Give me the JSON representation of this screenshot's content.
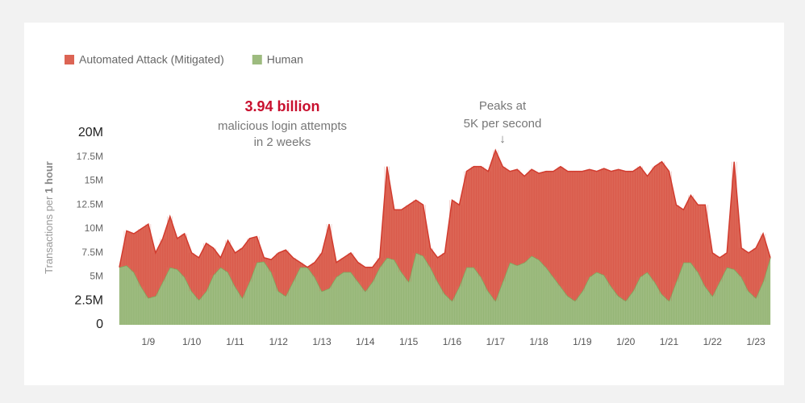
{
  "chart_data": {
    "type": "stacked_area",
    "annotations": {
      "total_value": "3.94 billion",
      "total_line1": "malicious login attempts",
      "total_line2": "in 2 weeks",
      "peak_line1": "Peaks at",
      "peak_line2": "5K per second",
      "peak_arrow": "↓"
    },
    "y_label": "Transactions per",
    "y_label_emphasis": "1 hour",
    "categories": [
      null,
      null,
      null,
      null,
      "1/9",
      null,
      null,
      null,
      null,
      null,
      "1/10",
      null,
      null,
      null,
      null,
      null,
      "1/11",
      null,
      null,
      null,
      null,
      null,
      "1/12",
      null,
      null,
      null,
      null,
      null,
      "1/13",
      null,
      null,
      null,
      null,
      null,
      "1/14",
      null,
      null,
      null,
      null,
      null,
      "1/15",
      null,
      null,
      null,
      null,
      null,
      "1/16",
      null,
      null,
      null,
      null,
      null,
      "1/17",
      null,
      null,
      null,
      null,
      null,
      "1/18",
      null,
      null,
      null,
      null,
      null,
      "1/19",
      null,
      null,
      null,
      null,
      null,
      "1/20",
      null,
      null,
      null,
      null,
      null,
      "1/21",
      null,
      null,
      null,
      null,
      null,
      "1/22",
      null,
      null,
      null,
      null,
      null,
      "1/23",
      null,
      null
    ],
    "series": [
      {
        "name": "Human",
        "color": "#9dbb7f",
        "stroke": "#7fa65c",
        "values": [
          6000000,
          6200000,
          5500000,
          4000000,
          2800000,
          3000000,
          4500000,
          6000000,
          5800000,
          5000000,
          3500000,
          2600000,
          3500000,
          5200000,
          6000000,
          5500000,
          4000000,
          2800000,
          4500000,
          6500000,
          6600000,
          5500000,
          3500000,
          3000000,
          4500000,
          6000000,
          6000000,
          5000000,
          3500000,
          3800000,
          5000000,
          5500000,
          5500000,
          4500000,
          3500000,
          4500000,
          6000000,
          7000000,
          6800000,
          5500000,
          4500000,
          7500000,
          7200000,
          6000000,
          4500000,
          3200000,
          2500000,
          4000000,
          6000000,
          6000000,
          5000000,
          3500000,
          2500000,
          4500000,
          6500000,
          6200000,
          6500000,
          7200000,
          6800000,
          6000000,
          5000000,
          4000000,
          3000000,
          2500000,
          3500000,
          5000000,
          5500000,
          5200000,
          4000000,
          3000000,
          2500000,
          3500000,
          5000000,
          5500000,
          4500000,
          3200000,
          2500000,
          4500000,
          6500000,
          6500000,
          5500000,
          4000000,
          3000000,
          4500000,
          6000000,
          5800000,
          5000000,
          3500000,
          2800000,
          4500000,
          7000000
        ]
      },
      {
        "name": "Automated Attack (Mitigated)",
        "color": "#dc6454",
        "stroke": "#d13b2e",
        "values": [
          0,
          3600000,
          4000000,
          6000000,
          7700000,
          4500000,
          4500000,
          5300000,
          3200000,
          4500000,
          4000000,
          4400000,
          5000000,
          2800000,
          1000000,
          3300000,
          3500000,
          5200000,
          4500000,
          2700000,
          400000,
          1300000,
          4000000,
          4800000,
          2500000,
          500000,
          0,
          1500000,
          4000000,
          6700000,
          1500000,
          1500000,
          2000000,
          2000000,
          2500000,
          1500000,
          1000000,
          9500000,
          5200000,
          6500000,
          8000000,
          5500000,
          5300000,
          2000000,
          2500000,
          4300000,
          10500000,
          8500000,
          10000000,
          10500000,
          11500000,
          12500000,
          15700000,
          12000000,
          9500000,
          10000000,
          9000000,
          9000000,
          9000000,
          10000000,
          11000000,
          12500000,
          13000000,
          13500000,
          12500000,
          11200000,
          10500000,
          11100000,
          12000000,
          13200000,
          13500000,
          12500000,
          11500000,
          10000000,
          12000000,
          13800000,
          13500000,
          8000000,
          5500000,
          7000000,
          7000000,
          8500000,
          4500000,
          2500000,
          1500000,
          11200000,
          3000000,
          4000000,
          5200000,
          5000000,
          0
        ]
      }
    ],
    "legend_order": [
      1,
      0
    ],
    "ylim": [
      0,
      20000000
    ],
    "yticks": [
      0,
      {
        "value": 2500000,
        "label": "2.5M"
      },
      {
        "value": 5000000,
        "label": "5M"
      },
      {
        "value": 7500000,
        "label": "7.5M"
      },
      {
        "value": 10000000,
        "label": "10M"
      },
      {
        "value": 12500000,
        "label": "12.5M"
      },
      {
        "value": 15000000,
        "label": "15M"
      },
      {
        "value": 17500000,
        "label": "17.5M"
      },
      {
        "value": 20000000,
        "label": "20M"
      }
    ],
    "grid": false
  }
}
